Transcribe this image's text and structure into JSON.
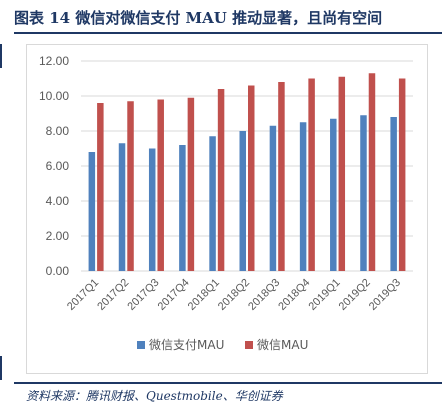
{
  "figure": {
    "title": "图表 14    微信对微信支付 MAU 推动显著，且尚有空间",
    "source": "资料来源：腾讯财报、Questmobile、华创证券"
  },
  "colors": {
    "series_1": "#4f81bd",
    "series_2": "#c0504d",
    "title_text": "#1f3864",
    "axis_text": "#595959",
    "gridline": "#d9d9d9"
  },
  "chart_data": {
    "type": "bar",
    "categories": [
      "2017Q1",
      "2017Q2",
      "2017Q3",
      "2017Q4",
      "2018Q1",
      "2018Q2",
      "2018Q3",
      "2018Q4",
      "2019Q1",
      "2019Q2",
      "2019Q3"
    ],
    "series": [
      {
        "name": "微信支付MAU",
        "values": [
          6.8,
          7.3,
          7.0,
          7.2,
          7.7,
          8.0,
          8.3,
          8.5,
          8.7,
          8.9,
          8.8
        ]
      },
      {
        "name": "微信MAU",
        "values": [
          9.6,
          9.7,
          9.8,
          9.9,
          10.4,
          10.6,
          10.8,
          11.0,
          11.1,
          11.3,
          11.0
        ]
      }
    ],
    "ylim": [
      0,
      12
    ],
    "yticks": [
      "0.00",
      "2.00",
      "4.00",
      "6.00",
      "8.00",
      "10.00",
      "12.00"
    ],
    "grid": true,
    "legend_position": "bottom"
  }
}
